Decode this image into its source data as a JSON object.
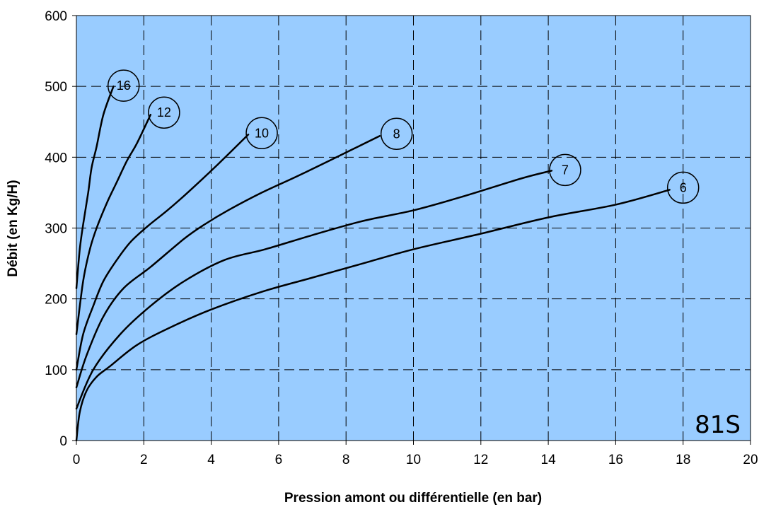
{
  "chart_data": {
    "type": "line",
    "title": "",
    "model_label": "81S",
    "xlabel": "Pression amont ou différentielle (en bar)",
    "ylabel": "Débit (en Kg/H)",
    "xlim": [
      0,
      20
    ],
    "ylim": [
      0,
      600
    ],
    "x_ticks": [
      0,
      2,
      4,
      6,
      8,
      10,
      12,
      14,
      16,
      18,
      20
    ],
    "y_ticks": [
      0,
      100,
      200,
      300,
      400,
      500,
      600
    ],
    "grid": true,
    "legend": "none",
    "colors": {
      "plot_bg": "#99CCFF",
      "grid": "#000000",
      "line": "#000000"
    },
    "series": [
      {
        "name": "16",
        "points": [
          [
            0,
            215
          ],
          [
            0.1,
            270
          ],
          [
            0.2,
            305
          ],
          [
            0.35,
            350
          ],
          [
            0.45,
            385
          ],
          [
            0.6,
            415
          ],
          [
            0.8,
            460
          ],
          [
            1.1,
            500
          ]
        ],
        "label_at": [
          1.4,
          501
        ]
      },
      {
        "name": "12",
        "points": [
          [
            0,
            150
          ],
          [
            0.2,
            225
          ],
          [
            0.4,
            270
          ],
          [
            0.6,
            300
          ],
          [
            0.9,
            335
          ],
          [
            1.2,
            365
          ],
          [
            1.5,
            395
          ],
          [
            1.8,
            420
          ],
          [
            2.2,
            460
          ]
        ],
        "label_at": [
          2.6,
          463
        ]
      },
      {
        "name": "10",
        "points": [
          [
            0,
            100
          ],
          [
            0.2,
            150
          ],
          [
            0.5,
            190
          ],
          [
            0.8,
            225
          ],
          [
            1.2,
            255
          ],
          [
            1.6,
            280
          ],
          [
            2.1,
            302
          ],
          [
            2.7,
            325
          ],
          [
            3.3,
            350
          ],
          [
            4.2,
            390
          ],
          [
            5.1,
            432
          ]
        ],
        "label_at": [
          5.5,
          434
        ]
      },
      {
        "name": "8",
        "points": [
          [
            0,
            75
          ],
          [
            0.3,
            120
          ],
          [
            0.8,
            175
          ],
          [
            1.4,
            215
          ],
          [
            2.2,
            245
          ],
          [
            3.2,
            285
          ],
          [
            3.8,
            305
          ],
          [
            4.5,
            325
          ],
          [
            5.5,
            350
          ],
          [
            6.5,
            372
          ],
          [
            7.5,
            395
          ],
          [
            9.0,
            430
          ]
        ],
        "label_at": [
          9.5,
          433
        ]
      },
      {
        "name": "7",
        "points": [
          [
            0,
            45
          ],
          [
            0.5,
            100
          ],
          [
            1.3,
            150
          ],
          [
            2.2,
            190
          ],
          [
            3.2,
            225
          ],
          [
            4.4,
            255
          ],
          [
            5.6,
            270
          ],
          [
            7,
            290
          ],
          [
            8.5,
            310
          ],
          [
            10,
            325
          ],
          [
            11.5,
            345
          ],
          [
            13.2,
            370
          ],
          [
            14.1,
            381
          ]
        ],
        "label_at": [
          14.5,
          382
        ]
      },
      {
        "name": "6",
        "points": [
          [
            0,
            0
          ],
          [
            0.1,
            40
          ],
          [
            0.3,
            70
          ],
          [
            0.6,
            90
          ],
          [
            1.0,
            105
          ],
          [
            1.8,
            135
          ],
          [
            2.8,
            160
          ],
          [
            4,
            185
          ],
          [
            5.5,
            210
          ],
          [
            7,
            230
          ],
          [
            8.5,
            250
          ],
          [
            10,
            270
          ],
          [
            12,
            292
          ],
          [
            14,
            315
          ],
          [
            16,
            333
          ],
          [
            17.6,
            354
          ]
        ],
        "label_at": [
          18,
          357
        ]
      }
    ]
  }
}
